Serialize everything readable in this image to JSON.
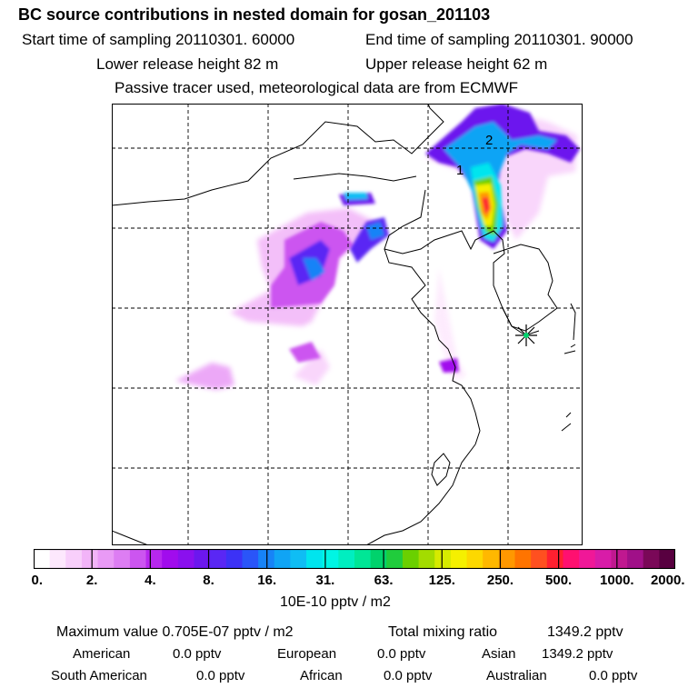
{
  "title": "BC  source contributions in nested domain for gosan_201103",
  "sampling": {
    "start_label": "Start time of sampling 20110301. 60000",
    "end_label": "End time of sampling 20110301. 90000"
  },
  "release": {
    "lower_label": "Lower release height   82 m",
    "upper_label": "Upper release height   62 m"
  },
  "tracer_note": "Passive tracer used, meteorological data are from ECMWF",
  "map": {
    "markers": [
      {
        "label": "1"
      },
      {
        "label": "2"
      }
    ],
    "receptor_icon": "star-marker-icon"
  },
  "colorbar": {
    "ticks": [
      "0.",
      "2.",
      "4.",
      "8.",
      "16.",
      "31.",
      "63.",
      "125.",
      "250.",
      "500.",
      "1000.",
      "2000."
    ],
    "unit": "10E-10 pptv / m2",
    "colors": [
      "#ffffff",
      "#fde8fd",
      "#f8cffb",
      "#f2b4f8",
      "#e99af6",
      "#dd7df3",
      "#cc55f0",
      "#b727ee",
      "#a10ced",
      "#8a10ee",
      "#6c17ee",
      "#5a27f4",
      "#3c32f6",
      "#2a55f8",
      "#1783f7",
      "#10a4f5",
      "#0fbdf4",
      "#00e5ee",
      "#00f5e4",
      "#00eec0",
      "#00e696",
      "#00d26c",
      "#20cc3c",
      "#6ad000",
      "#a3dc00",
      "#d6ea00",
      "#f5f000",
      "#fdd800",
      "#ffb800",
      "#ff9800",
      "#ff7400",
      "#ff5020",
      "#ff2030",
      "#ff1070",
      "#f01898",
      "#d81ca8",
      "#c01890",
      "#a01088",
      "#7a0858",
      "#580040"
    ]
  },
  "stats": {
    "max_label": "Maximum value  0.705E-07 pptv / m2",
    "total_label": "Total mixing ratio",
    "total_value": "1349.2 pptv",
    "regions": [
      {
        "name": "American",
        "value": "0.0 pptv"
      },
      {
        "name": "European",
        "value": "0.0 pptv"
      },
      {
        "name": "Asian",
        "value": "1349.2 pptv"
      },
      {
        "name": "South American",
        "value": "0.0 pptv"
      },
      {
        "name": "African",
        "value": "0.0 pptv"
      },
      {
        "name": "Australian",
        "value": "0.0 pptv"
      }
    ]
  }
}
